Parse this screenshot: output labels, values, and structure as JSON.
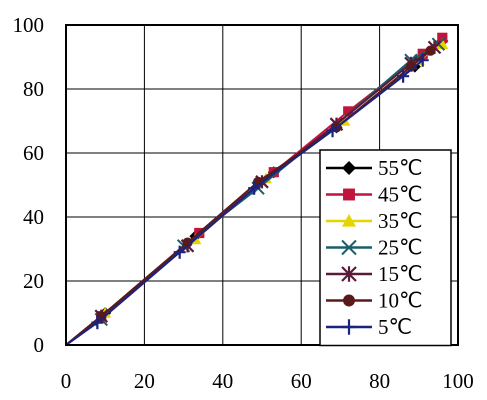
{
  "chart_data": {
    "type": "line",
    "title": "",
    "xlabel": "",
    "ylabel": "",
    "xlim": [
      0,
      100
    ],
    "ylim": [
      0,
      100
    ],
    "x_ticks": [
      "0",
      "20",
      "40",
      "60",
      "80",
      "100"
    ],
    "y_ticks": [
      "0",
      "20",
      "40",
      "60",
      "80",
      "100"
    ],
    "grid": true,
    "legend_position": "bottom-right",
    "series": [
      {
        "name": "55℃",
        "color": "#000000",
        "marker": "diamond",
        "x": [
          0,
          10,
          33,
          53,
          69,
          89,
          96
        ],
        "y": [
          0,
          10,
          34,
          54,
          68,
          87,
          95
        ]
      },
      {
        "name": "45℃",
        "color": "#c0143c",
        "marker": "square",
        "x": [
          0,
          9,
          34,
          53,
          72,
          91,
          96
        ],
        "y": [
          0,
          9,
          35,
          54,
          73,
          91,
          96
        ]
      },
      {
        "name": "35℃",
        "color": "#e6d400",
        "marker": "triangle",
        "x": [
          0,
          10,
          33,
          51,
          71,
          90,
          96
        ],
        "y": [
          0,
          10,
          33,
          52,
          70,
          89,
          94
        ]
      },
      {
        "name": "25℃",
        "color": "#1a5e6a",
        "marker": "x",
        "x": [
          0,
          9,
          30,
          49,
          69,
          88,
          95
        ],
        "y": [
          0,
          8,
          31,
          49,
          69,
          89,
          94
        ]
      },
      {
        "name": "15℃",
        "color": "#5a1a3a",
        "marker": "star",
        "x": [
          0,
          9,
          31,
          50,
          69,
          88,
          94
        ],
        "y": [
          0,
          9,
          31,
          51,
          69,
          88,
          93
        ]
      },
      {
        "name": "10℃",
        "color": "#5a1a1a",
        "marker": "circle",
        "x": [
          0,
          9,
          31,
          49,
          69,
          88,
          93
        ],
        "y": [
          0,
          9,
          32,
          51,
          68,
          87,
          92
        ]
      },
      {
        "name": "5℃",
        "color": "#1a237e",
        "marker": "plus",
        "x": [
          0,
          8,
          29,
          48,
          68,
          86,
          91
        ],
        "y": [
          0,
          7,
          29,
          49,
          67,
          84,
          89
        ]
      }
    ]
  }
}
